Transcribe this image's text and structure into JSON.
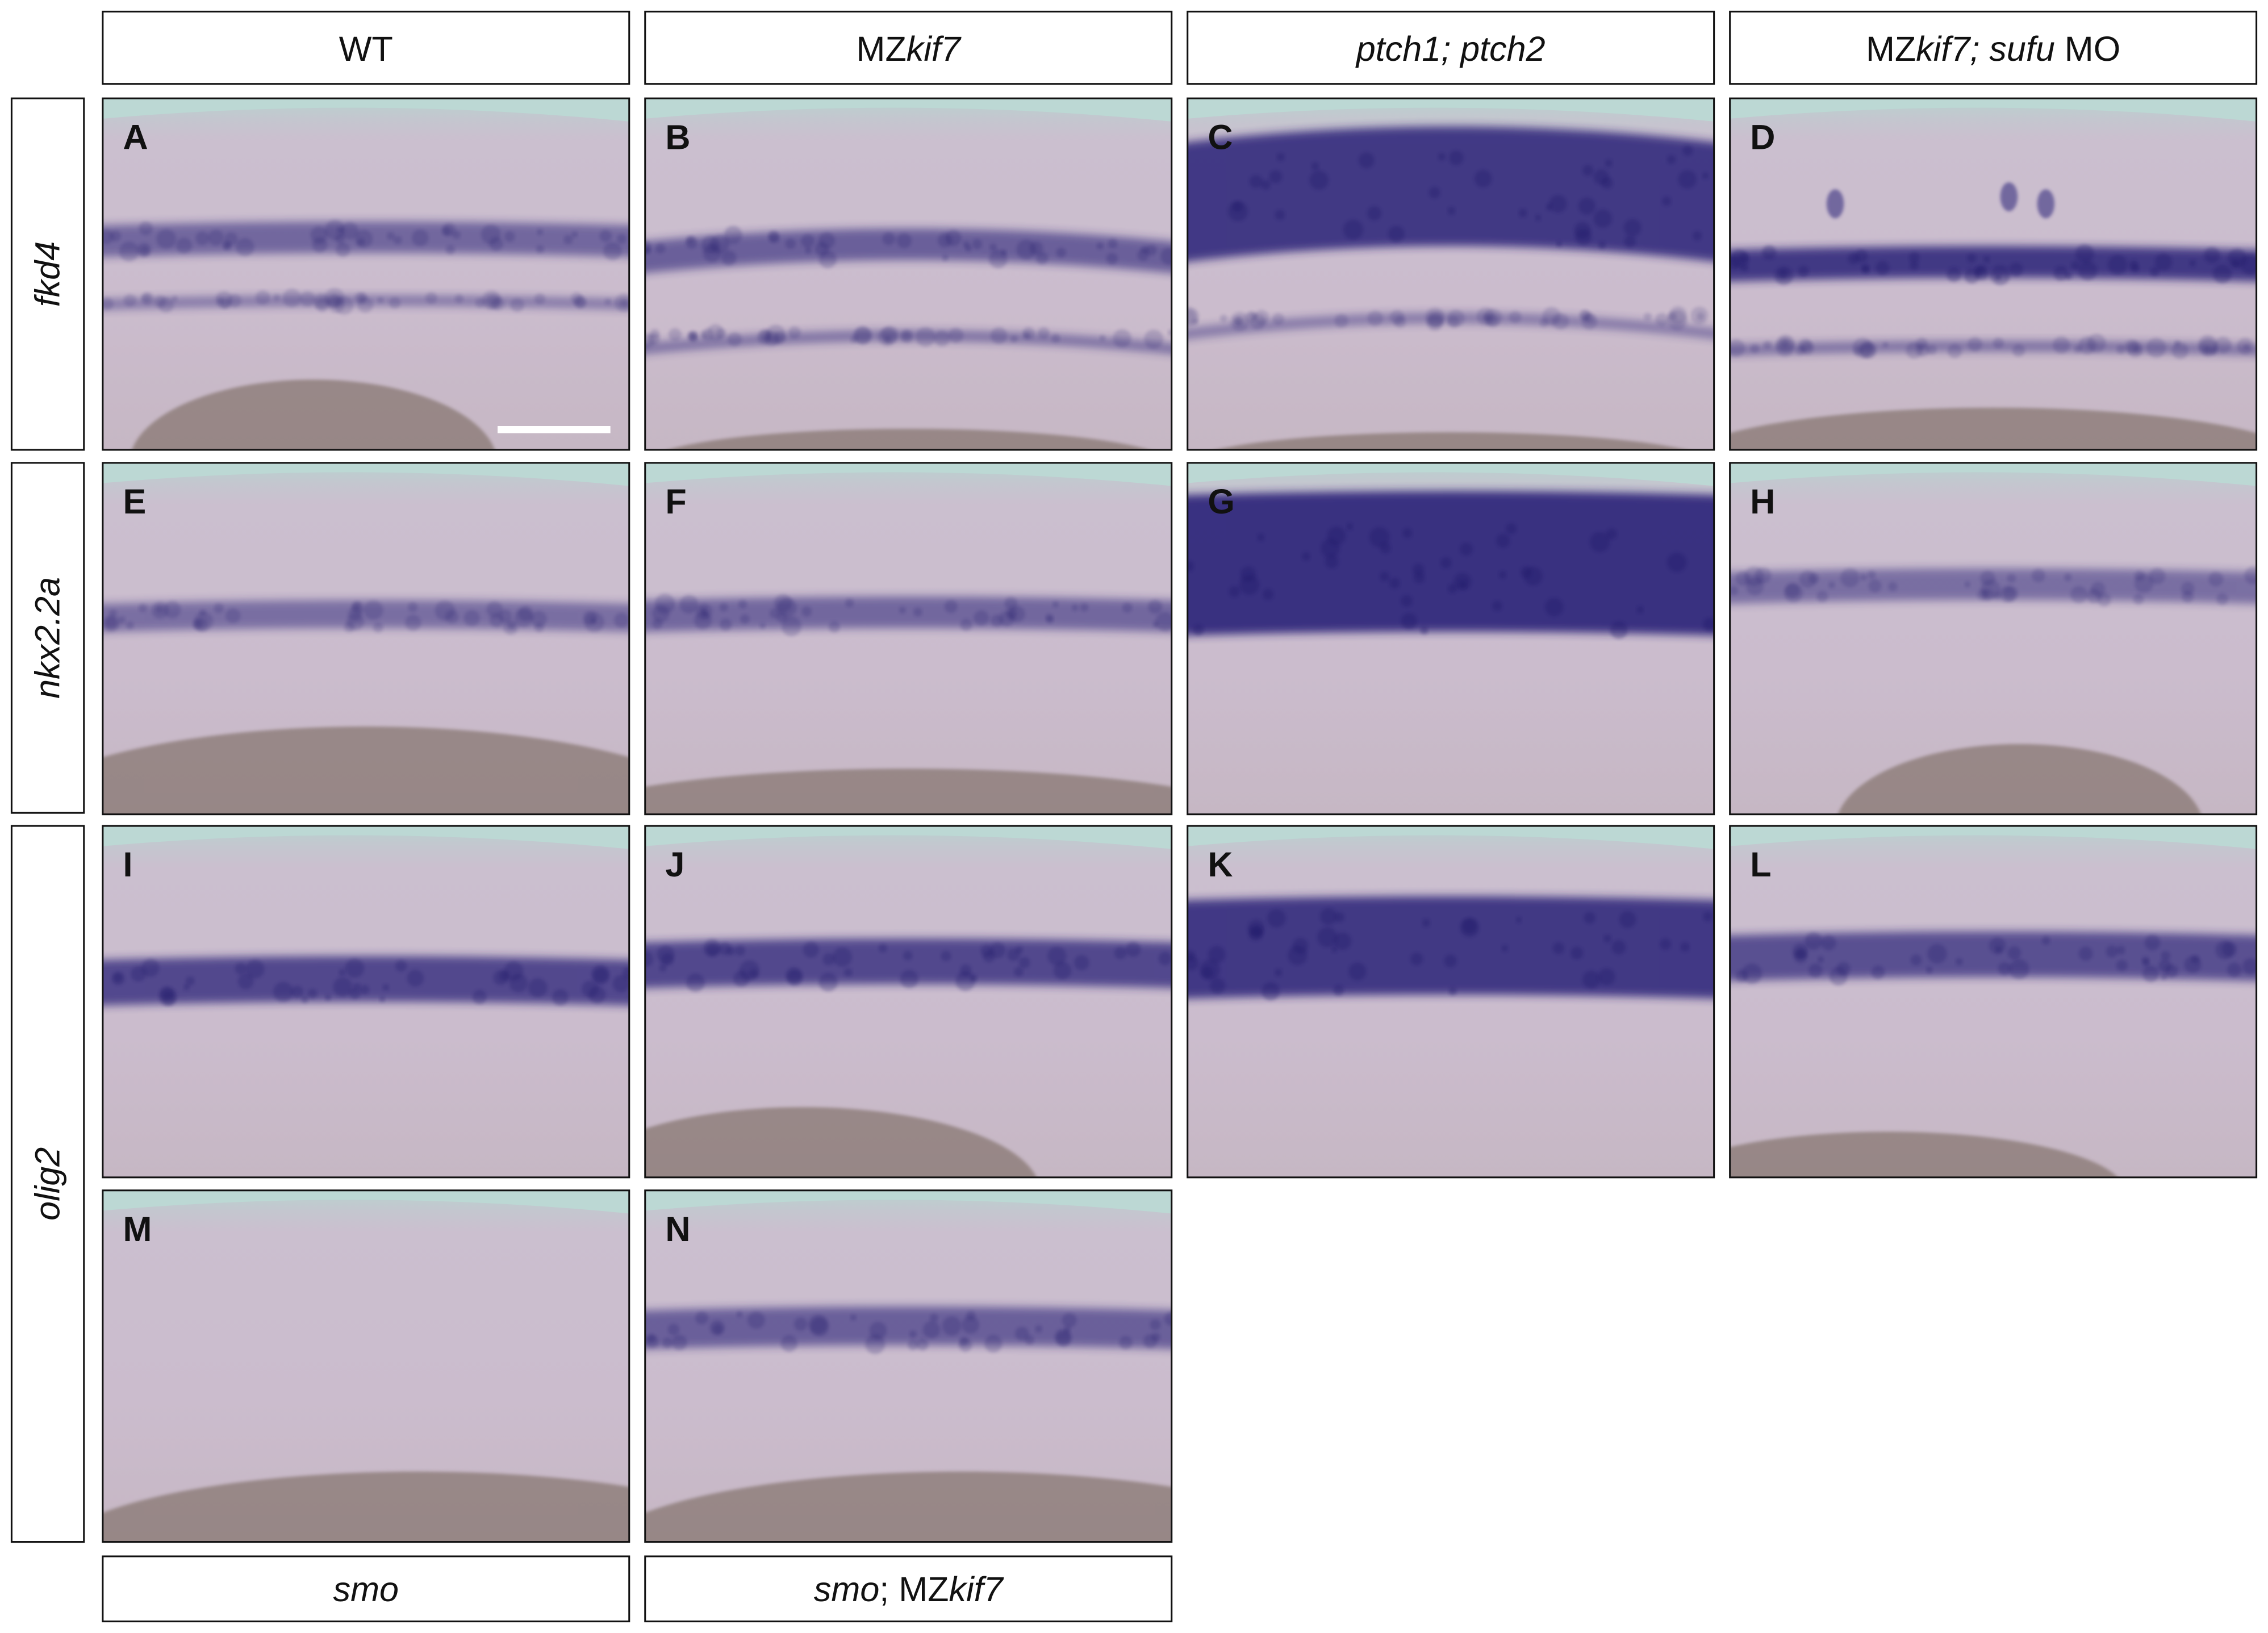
{
  "column_headers": [
    {
      "parts": [
        {
          "text": "WT"
        }
      ]
    },
    {
      "parts": [
        {
          "text": "MZ"
        },
        {
          "text": "kif7",
          "italic": true
        }
      ]
    },
    {
      "parts": [
        {
          "text": "ptch1; ptch2",
          "italic": true
        }
      ]
    },
    {
      "parts": [
        {
          "text": "MZ"
        },
        {
          "text": "kif7; sufu",
          "italic": true
        },
        {
          "text": " MO"
        }
      ]
    }
  ],
  "row_labels": [
    {
      "parts": [
        {
          "text": "fkd4",
          "italic": true
        }
      ]
    },
    {
      "parts": [
        {
          "text": "nkx2.2a",
          "italic": true
        }
      ]
    },
    {
      "parts": [
        {
          "text": "olig2",
          "italic": true
        }
      ]
    }
  ],
  "panels": [
    {
      "letter": "A"
    },
    {
      "letter": "B"
    },
    {
      "letter": "C"
    },
    {
      "letter": "D"
    },
    {
      "letter": "E"
    },
    {
      "letter": "F"
    },
    {
      "letter": "G"
    },
    {
      "letter": "H"
    },
    {
      "letter": "I"
    },
    {
      "letter": "J"
    },
    {
      "letter": "K"
    },
    {
      "letter": "L"
    },
    {
      "letter": "M"
    },
    {
      "letter": "N"
    }
  ],
  "footer_labels": [
    {
      "parts": [
        {
          "text": "smo",
          "italic": true
        }
      ]
    },
    {
      "parts": [
        {
          "text": "smo",
          "italic": true
        },
        {
          "text": "; MZ"
        },
        {
          "text": "kif7",
          "italic": true
        }
      ]
    }
  ]
}
